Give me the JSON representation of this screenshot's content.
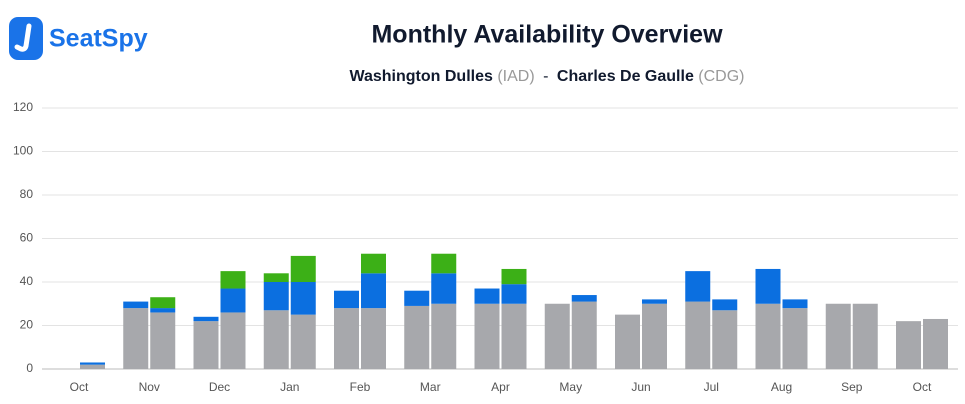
{
  "brand": {
    "name": "SeatSpy"
  },
  "chart_data": {
    "type": "stacked-bar",
    "title": "Monthly Availability Overview",
    "subtitle": {
      "origin": "Washington Dulles",
      "origin_code": "(IAD)",
      "separator": "-",
      "destination": "Charles De Gaulle",
      "destination_code": "(CDG)"
    },
    "categories": [
      "Oct",
      null,
      "Nov",
      null,
      "Dec",
      null,
      "Jan",
      null,
      "Feb",
      null,
      "Mar",
      null,
      "Apr",
      null,
      "May",
      null,
      "Jun",
      null,
      "Jul",
      null,
      "Aug",
      null,
      "Sep",
      null,
      "Oct",
      null
    ],
    "series": [
      {
        "color": "#a7a8ac",
        "values": [
          0,
          2,
          28,
          26,
          22,
          26,
          27,
          25,
          28,
          28,
          29,
          30,
          30,
          30,
          30,
          31,
          25,
          30,
          31,
          27,
          30,
          28,
          30,
          30,
          22,
          23
        ]
      },
      {
        "color": "#0b6fe0",
        "values": [
          0,
          1,
          3,
          2,
          2,
          11,
          13,
          15,
          8,
          16,
          7,
          14,
          7,
          9,
          0,
          3,
          0,
          2,
          14,
          5,
          16,
          4,
          0,
          0,
          0,
          0
        ]
      },
      {
        "color": "#3cb017",
        "values": [
          0,
          0,
          0,
          5,
          0,
          8,
          4,
          12,
          0,
          9,
          0,
          9,
          0,
          7,
          0,
          0,
          0,
          0,
          0,
          0,
          0,
          0,
          0,
          0,
          0,
          0
        ]
      }
    ],
    "ylim": [
      0,
      120
    ],
    "yticks": [
      0,
      20,
      40,
      60,
      80,
      100,
      120
    ],
    "grid": true
  }
}
